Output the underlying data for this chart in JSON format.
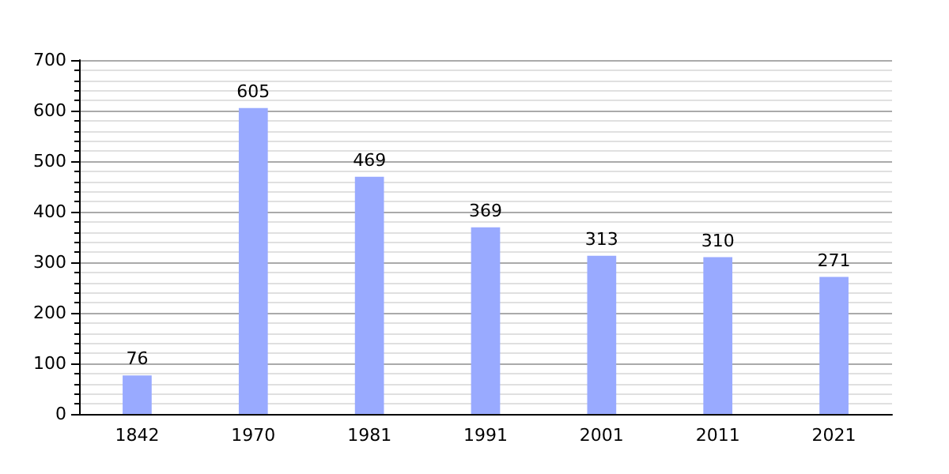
{
  "chart_data": {
    "type": "bar",
    "categories": [
      "1842",
      "1970",
      "1981",
      "1991",
      "2001",
      "2011",
      "2021"
    ],
    "values": [
      76,
      605,
      469,
      369,
      313,
      310,
      271
    ],
    "color": "#99aaff",
    "ylim": [
      0,
      700
    ],
    "yticks": [
      0,
      100,
      200,
      300,
      400,
      500,
      600,
      700
    ],
    "grid": true,
    "data_labels": true
  }
}
